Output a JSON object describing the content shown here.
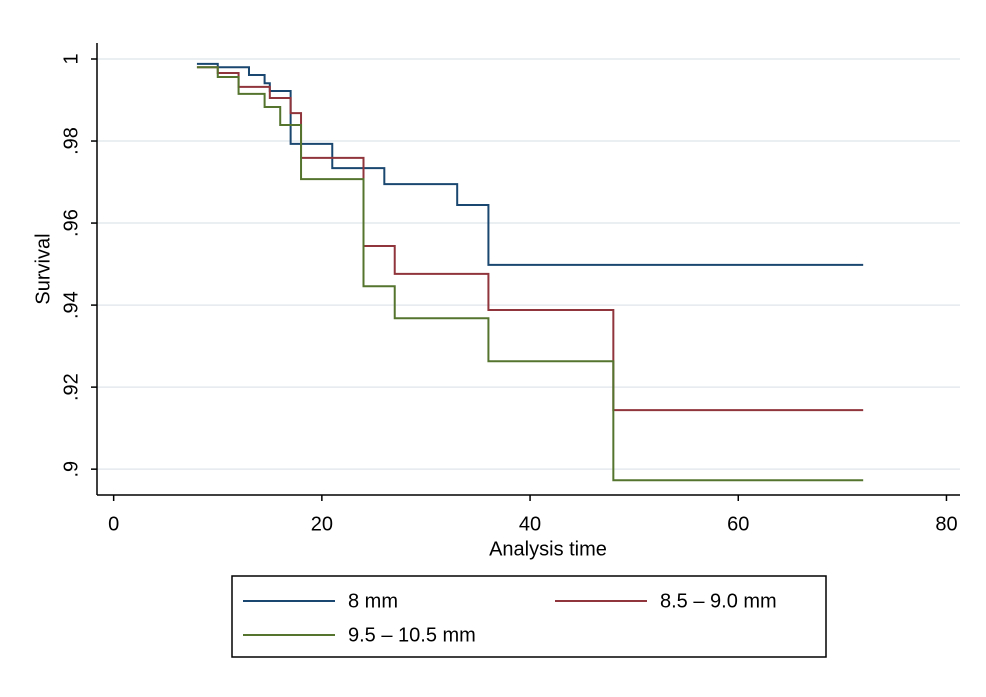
{
  "chart_data": {
    "type": "step",
    "xlabel": "Analysis time",
    "ylabel": "Survival",
    "xlim": [
      -1.6,
      81.3
    ],
    "ylim": [
      0.8937,
      1.0039
    ],
    "xticks": [
      0,
      20,
      40,
      60,
      80
    ],
    "yticks": [
      {
        "value": 0.9,
        "label": ".9"
      },
      {
        "value": 0.92,
        "label": ".92"
      },
      {
        "value": 0.94,
        "label": ".94"
      },
      {
        "value": 0.96,
        "label": ".96"
      },
      {
        "value": 0.98,
        "label": ".98"
      },
      1
    ],
    "grid": true,
    "series": [
      {
        "name": "8 mm",
        "color": "#1a476f",
        "x": [
          8,
          10,
          13,
          14.5,
          15,
          17,
          21,
          26,
          33,
          36,
          72
        ],
        "values": [
          0.9988,
          0.998,
          0.9961,
          0.9941,
          0.9922,
          0.9793,
          0.9734,
          0.9695,
          0.9644,
          0.9498,
          0.9498
        ]
      },
      {
        "name": "8.5 – 9.0 mm",
        "color": "#90353b",
        "x": [
          8,
          10,
          12,
          15,
          17,
          18,
          24,
          27,
          36,
          48,
          72
        ],
        "values": [
          0.998,
          0.9966,
          0.9932,
          0.9905,
          0.9868,
          0.9759,
          0.9544,
          0.9476,
          0.9388,
          0.9144,
          0.9144
        ]
      },
      {
        "name": "9.5 – 10.5 mm",
        "color": "#55752f",
        "x": [
          8,
          10,
          12,
          14.5,
          16,
          18,
          24,
          27,
          36,
          48,
          72
        ],
        "values": [
          0.998,
          0.9956,
          0.9915,
          0.9883,
          0.9839,
          0.9707,
          0.9446,
          0.9368,
          0.9263,
          0.8973,
          0.8973
        ]
      }
    ]
  }
}
